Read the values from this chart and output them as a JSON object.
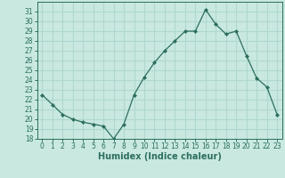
{
  "x": [
    0,
    1,
    2,
    3,
    4,
    5,
    6,
    7,
    8,
    9,
    10,
    11,
    12,
    13,
    14,
    15,
    16,
    17,
    18,
    19,
    20,
    21,
    22,
    23
  ],
  "y": [
    22.5,
    21.5,
    20.5,
    20.0,
    19.7,
    19.5,
    19.3,
    18.0,
    19.5,
    22.5,
    24.3,
    25.8,
    27.0,
    28.0,
    29.0,
    29.0,
    31.2,
    29.7,
    28.7,
    29.0,
    26.5,
    24.2,
    23.3,
    20.5
  ],
  "xlabel": "Humidex (Indice chaleur)",
  "ylim": [
    18,
    32
  ],
  "xlim": [
    -0.5,
    23.5
  ],
  "yticks": [
    18,
    19,
    20,
    21,
    22,
    23,
    24,
    25,
    26,
    27,
    28,
    29,
    30,
    31
  ],
  "xticks": [
    0,
    1,
    2,
    3,
    4,
    5,
    6,
    7,
    8,
    9,
    10,
    11,
    12,
    13,
    14,
    15,
    16,
    17,
    18,
    19,
    20,
    21,
    22,
    23
  ],
  "line_color": "#2d6e5e",
  "marker": "D",
  "marker_size": 2.0,
  "bg_color": "#c8e8e0",
  "grid_color": "#b0d8d0",
  "tick_label_fontsize": 5.5,
  "xlabel_fontsize": 7.0,
  "line_width": 0.9
}
